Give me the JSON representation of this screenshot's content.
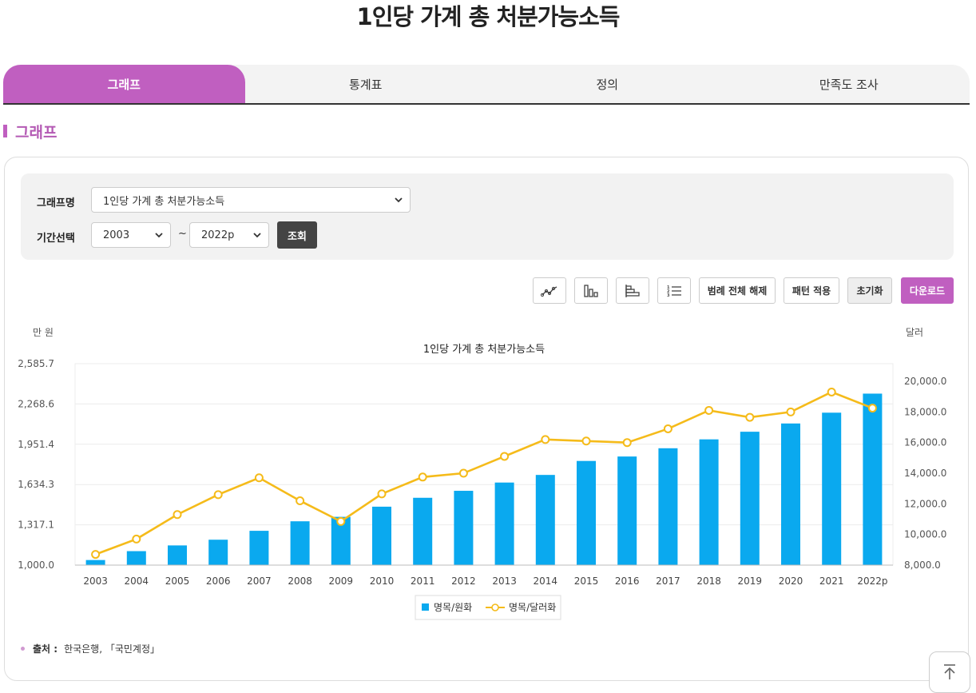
{
  "page": {
    "title": "1인당 가계 총 처분가능소득"
  },
  "tabs": [
    {
      "label": "그래프",
      "active": true
    },
    {
      "label": "통계표",
      "active": false
    },
    {
      "label": "정의",
      "active": false
    },
    {
      "label": "만족도 조사",
      "active": false
    }
  ],
  "section": {
    "title": "그래프"
  },
  "filter": {
    "graph_label": "그래프명",
    "graph_value": "1인당 가계 총 처분가능소득",
    "period_label": "기간선택",
    "start_value": "2003",
    "tilde": "~",
    "end_value": "2022p",
    "query_button": "조회"
  },
  "toolbar": {
    "line_icon": "line-chart-icon",
    "bar_icon": "bar-chart-icon",
    "hbar_icon": "horizontal-bar-chart-icon",
    "list_icon": "numbered-list-icon",
    "legend_off": "범례 전체 해제",
    "pattern": "패턴 적용",
    "reset": "초기화",
    "download": "다운로드"
  },
  "colors": {
    "accent": "#c05fc0",
    "bar": "#0aa9ef",
    "line": "#f5bb1a"
  },
  "chart_data": {
    "type": "bar",
    "title": "1인당 가계 총 처분가능소득",
    "y_left_unit": "만 원",
    "y_right_unit": "달러",
    "categories": [
      "2003",
      "2004",
      "2005",
      "2006",
      "2007",
      "2008",
      "2009",
      "2010",
      "2011",
      "2012",
      "2013",
      "2014",
      "2015",
      "2016",
      "2017",
      "2018",
      "2019",
      "2020",
      "2021",
      "2022p"
    ],
    "y_left_ticks": [
      "1,000.0",
      "1,317.1",
      "1,634.3",
      "1,951.4",
      "2,268.6",
      "2,585.7"
    ],
    "y_right_ticks": [
      "8,000.0",
      "10,000.0",
      "12,000.0",
      "14,000.0",
      "16,000.0",
      "18,000.0",
      "20,000.0"
    ],
    "y_left_range": [
      1000.0,
      2585.7
    ],
    "y_right_range": [
      8000,
      21150
    ],
    "series": [
      {
        "name": "명목/원화",
        "type": "bar",
        "axis": "left",
        "values": [
          1040,
          1110,
          1155,
          1200,
          1270,
          1345,
          1380,
          1460,
          1530,
          1585,
          1650,
          1710,
          1820,
          1855,
          1920,
          1990,
          2050,
          2115,
          2200,
          2350
        ]
      },
      {
        "name": "명목/달러화",
        "type": "line",
        "axis": "right",
        "values": [
          8700,
          9700,
          11300,
          12600,
          13700,
          12200,
          10850,
          12650,
          13750,
          14000,
          15100,
          16200,
          16100,
          16000,
          16900,
          18100,
          17650,
          18000,
          19300,
          18250
        ]
      }
    ]
  },
  "source": {
    "label": "출처 :",
    "text": "한국은행, 「국민계정」"
  }
}
